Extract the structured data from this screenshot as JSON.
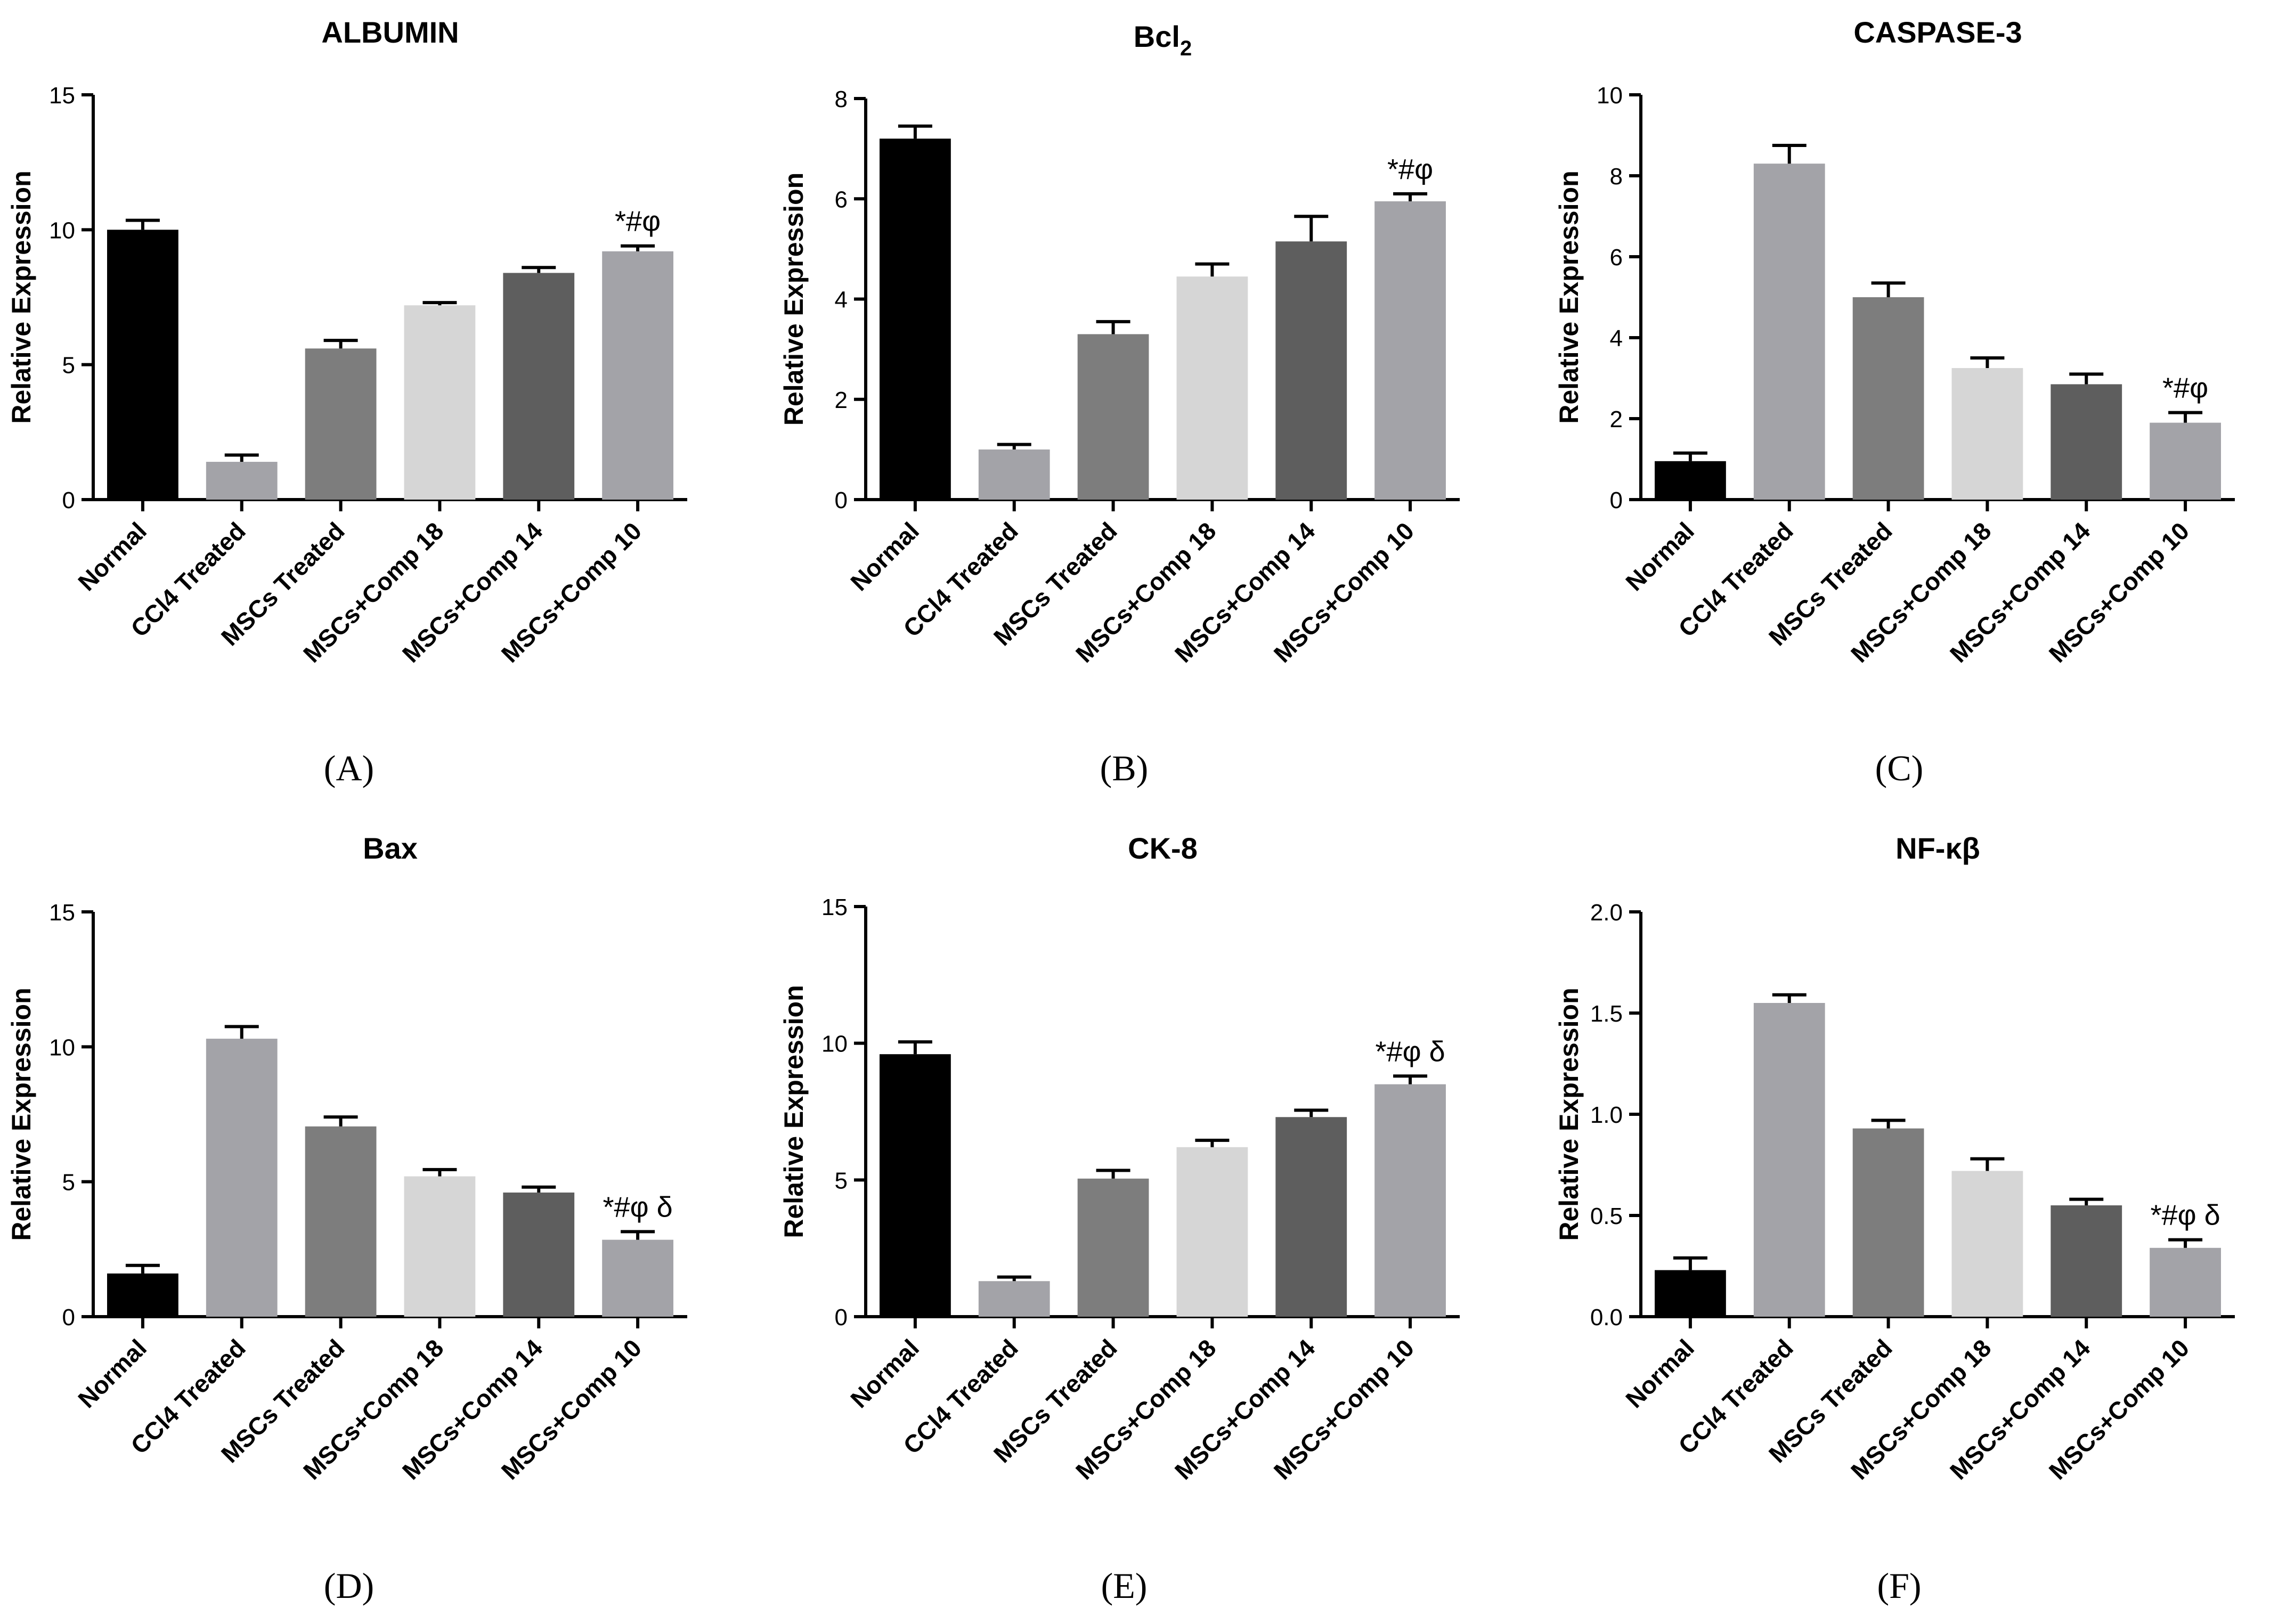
{
  "categories": [
    "Normal",
    "CCl4 Treated",
    "MSCs Treated",
    "MSCs+Comp 18",
    "MSCs+Comp 14",
    "MSCs+Comp 10"
  ],
  "bar_colors": [
    "#000000",
    "#a3a3a8",
    "#7d7d7d",
    "#d6d6d6",
    "#5e5e5e",
    "#a3a3a8"
  ],
  "chart_data": [
    {
      "type": "bar",
      "panel": "A",
      "title": "ALBUMIN",
      "title_main": "ALBUMIN",
      "title_sub": "",
      "ylabel": "Relative Expression",
      "ylim": [
        0,
        15
      ],
      "ticks": [
        0,
        5,
        10,
        15
      ],
      "tick_labels": [
        "0",
        "5",
        "10",
        "15"
      ],
      "values": [
        10.0,
        1.4,
        5.6,
        7.2,
        8.4,
        9.2
      ],
      "errors": [
        0.35,
        0.25,
        0.3,
        0.1,
        0.2,
        0.2
      ],
      "annotation": "*#φ",
      "letter": "(A)"
    },
    {
      "type": "bar",
      "panel": "B",
      "title": "Bcl2",
      "title_main": "Bcl",
      "title_sub": "2",
      "ylabel": "Relative Expression",
      "ylim": [
        0,
        8
      ],
      "ticks": [
        0,
        2,
        4,
        6,
        8
      ],
      "tick_labels": [
        "0",
        "2",
        "4",
        "6",
        "8"
      ],
      "values": [
        7.2,
        1.0,
        3.3,
        4.45,
        5.15,
        5.95
      ],
      "errors": [
        0.25,
        0.1,
        0.25,
        0.25,
        0.5,
        0.15
      ],
      "annotation": "*#φ",
      "letter": "(B)"
    },
    {
      "type": "bar",
      "panel": "C",
      "title": "CASPASE-3",
      "title_main": "CASPASE-3",
      "title_sub": "",
      "ylabel": "Relative Expression",
      "ylim": [
        0,
        10
      ],
      "ticks": [
        0,
        2,
        4,
        6,
        8,
        10
      ],
      "tick_labels": [
        "0",
        "2",
        "4",
        "6",
        "8",
        "10"
      ],
      "values": [
        0.95,
        8.3,
        5.0,
        3.25,
        2.85,
        1.9
      ],
      "errors": [
        0.2,
        0.45,
        0.35,
        0.25,
        0.25,
        0.25
      ],
      "annotation": "*#φ",
      "letter": "(C)"
    },
    {
      "type": "bar",
      "panel": "D",
      "title": "Bax",
      "title_main": "Bax",
      "title_sub": "",
      "ylabel": "Relative Expression",
      "ylim": [
        0,
        15
      ],
      "ticks": [
        0,
        5,
        10,
        15
      ],
      "tick_labels": [
        "0",
        "5",
        "10",
        "15"
      ],
      "values": [
        1.6,
        10.3,
        7.05,
        5.2,
        4.6,
        2.85
      ],
      "errors": [
        0.3,
        0.45,
        0.35,
        0.25,
        0.2,
        0.3
      ],
      "annotation": "*#φ δ",
      "letter": "(D)"
    },
    {
      "type": "bar",
      "panel": "E",
      "title": "CK-8",
      "title_main": "CK-8",
      "title_sub": "",
      "ylabel": "Relative Expression",
      "ylim": [
        0,
        15
      ],
      "ticks": [
        0,
        5,
        10,
        15
      ],
      "tick_labels": [
        "0",
        "5",
        "10",
        "15"
      ],
      "values": [
        9.6,
        1.3,
        5.05,
        6.2,
        7.3,
        8.5
      ],
      "errors": [
        0.45,
        0.15,
        0.3,
        0.25,
        0.25,
        0.3
      ],
      "annotation": "*#φ δ",
      "letter": "(E)"
    },
    {
      "type": "bar",
      "panel": "F",
      "title": "NF-κβ",
      "title_main": "NF-κβ",
      "title_sub": "",
      "ylabel": "Relative Expression",
      "ylim": [
        0,
        2.0
      ],
      "ticks": [
        0,
        0.5,
        1.0,
        1.5,
        2.0
      ],
      "tick_labels": [
        "0.0",
        "0.5",
        "1.0",
        "1.5",
        "2.0"
      ],
      "values": [
        0.23,
        1.55,
        0.93,
        0.72,
        0.55,
        0.34
      ],
      "errors": [
        0.06,
        0.04,
        0.04,
        0.06,
        0.03,
        0.04
      ],
      "annotation": "*#φ δ",
      "letter": "(F)"
    }
  ]
}
